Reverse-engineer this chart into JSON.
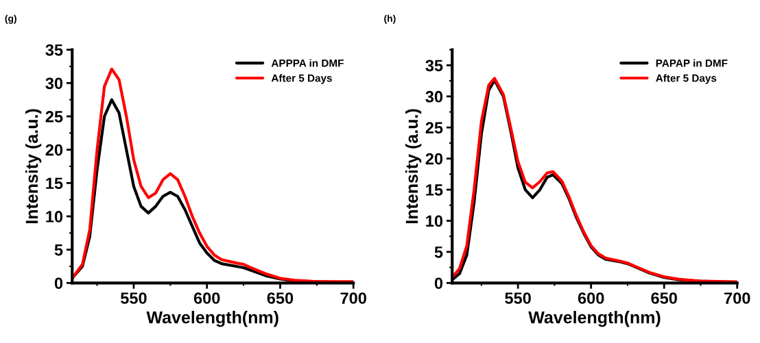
{
  "chart_data": [
    {
      "type": "line",
      "title": "(g)",
      "xlabel": "Wavelength(nm)",
      "ylabel": "Intensity (a.u.)",
      "xlim": [
        508,
        700
      ],
      "xticks": [
        550,
        600,
        650,
        700
      ],
      "ylim": [
        0,
        35
      ],
      "yticks": [
        0,
        5,
        10,
        15,
        20,
        25,
        30,
        35
      ],
      "legend": "top right",
      "grid": false,
      "x": [
        508,
        515,
        520,
        525,
        530,
        535,
        540,
        545,
        550,
        555,
        560,
        565,
        570,
        575,
        580,
        585,
        590,
        595,
        600,
        605,
        610,
        620,
        625,
        630,
        640,
        650,
        660,
        675,
        700
      ],
      "series": [
        {
          "name": "APPPA in DMF",
          "color": "#000000",
          "values": [
            0.7,
            2.5,
            7,
            17,
            25,
            27.5,
            25.5,
            20,
            14.5,
            11.5,
            10.5,
            11.5,
            13,
            13.6,
            13,
            11,
            8.5,
            6,
            4.5,
            3.4,
            2.9,
            2.5,
            2.3,
            1.9,
            1.1,
            0.6,
            0.3,
            0.2,
            0.1
          ]
        },
        {
          "name": "After 5 Days",
          "color": "#ff0000",
          "values": [
            0.7,
            2.8,
            8,
            20,
            29.5,
            32.1,
            30.5,
            25,
            18.5,
            14.5,
            12.8,
            13.5,
            15.5,
            16.4,
            15.5,
            13,
            10,
            7.5,
            5.5,
            4.2,
            3.5,
            3.0,
            2.8,
            2.3,
            1.4,
            0.7,
            0.4,
            0.2,
            0.2
          ]
        }
      ]
    },
    {
      "type": "line",
      "title": "(h)",
      "xlabel": "Wavelength(nm)",
      "ylabel": "Intensity (a.u.)",
      "xlim": [
        505,
        700
      ],
      "xticks": [
        550,
        600,
        650,
        700
      ],
      "ylim": [
        0,
        37.5
      ],
      "yticks": [
        0,
        5,
        10,
        15,
        20,
        25,
        30,
        35
      ],
      "legend": "top right",
      "grid": false,
      "x": [
        505,
        510,
        515,
        520,
        525,
        530,
        534,
        540,
        545,
        550,
        555,
        560,
        565,
        570,
        574,
        580,
        585,
        590,
        595,
        600,
        605,
        610,
        620,
        625,
        630,
        640,
        650,
        660,
        675,
        700
      ],
      "series": [
        {
          "name": "PAPAP in DMF",
          "color": "#000000",
          "values": [
            0.5,
            1.5,
            4.5,
            13,
            24,
            31,
            32.6,
            30,
            24.5,
            18.5,
            15,
            13.7,
            15,
            17,
            17.4,
            16,
            13.5,
            10.5,
            8,
            5.8,
            4.5,
            3.8,
            3.4,
            3.1,
            2.6,
            1.6,
            0.9,
            0.5,
            0.3,
            0.1
          ]
        },
        {
          "name": "After 5 Days",
          "color": "#ff0000",
          "values": [
            0.9,
            2.3,
            6,
            15,
            26,
            31.8,
            32.9,
            30.3,
            25,
            19.5,
            16.2,
            15.3,
            16.3,
            17.7,
            17.9,
            16.4,
            13.8,
            10.8,
            8.2,
            6,
            4.7,
            4,
            3.5,
            3.2,
            2.7,
            1.7,
            1,
            0.6,
            0.3,
            0.2
          ]
        }
      ]
    }
  ]
}
